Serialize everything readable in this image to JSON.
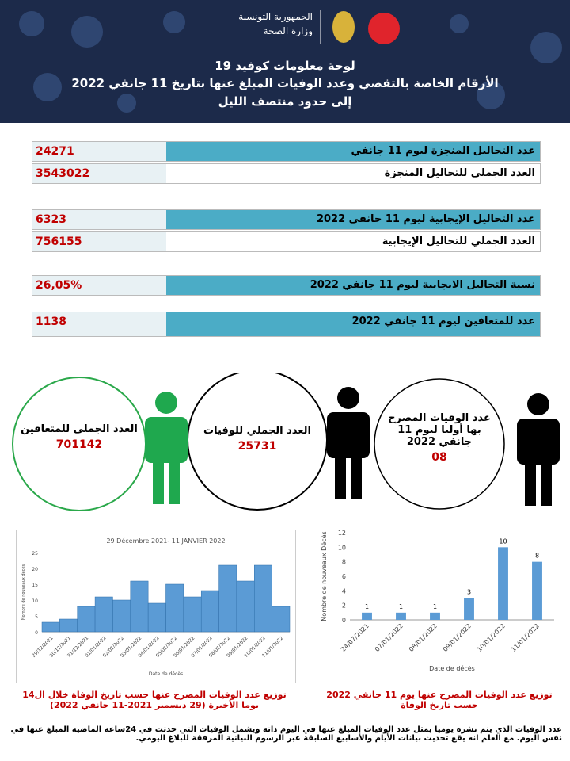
{
  "header": {
    "republic": "الجمهورية التونسية",
    "ministry": "وزارة الصحة",
    "title": "لوحة معلومات كوفيد 19",
    "subtitle": "الأرقام الخاصة بالتقصي وعدد الوفيات المبلغ عنها بتاريخ  11 جانفي 2022",
    "note": "إلى حدود منتصف الليل"
  },
  "table": {
    "rows": [
      [
        "عدد التحاليل المنجزة ليوم 11 جانفي",
        "24271"
      ],
      [
        "العدد الجملي للتحاليل المنجزة",
        "3543022"
      ],
      [
        "عدد التحاليل الإيجابية ليوم  11 جانفي 2022",
        "6323"
      ],
      [
        "العدد الجملي للتحاليل الإيجابية",
        "756155"
      ],
      [
        "نسبة التحاليل الايجابية ليوم 11 جانفي 2022",
        "26,05%"
      ],
      [
        "عدد للمتعافين ليوم 11 جانفي 2022",
        "1138"
      ]
    ]
  },
  "circles": [
    {
      "label": "العدد الجملي للمتعافين",
      "value": "701142"
    },
    {
      "label": "العدد الجملي للوفيات",
      "value": "25731"
    },
    {
      "label": "عدد الوفيات المصرح بها أوليا ليوم 11 جانفي 2022",
      "value": "08"
    }
  ],
  "chart_data": [
    {
      "type": "bar",
      "title": "29 Décembre 2021- 11 JANVIER 2022",
      "x_label": "Date de décès",
      "y_label": "Nombre de nouveaux décès",
      "color": "#5b9bd5",
      "categories": [
        "29/12/2021",
        "30/12/2021",
        "31/12/2021",
        "01/01/2022",
        "02/01/2022",
        "03/01/2022",
        "04/01/2022",
        "05/01/2022",
        "06/01/2022",
        "07/01/2022",
        "08/01/2022",
        "09/01/2022",
        "10/01/2022",
        "11/01/2022"
      ],
      "values": [
        3,
        4,
        8,
        11,
        10,
        16,
        9,
        15,
        11,
        13,
        21,
        16,
        21,
        8
      ],
      "ylim": [
        0,
        25
      ],
      "yticks": [
        0,
        5,
        10,
        15,
        20,
        25
      ],
      "grid": false,
      "bar_width": 1.0,
      "value_labels_shown": false
    },
    {
      "type": "bar",
      "x_label": "Date de décès",
      "y_label": "Nombre de nouveaux Décès",
      "color": "#5b9bd5",
      "categories": [
        "24/07/2021",
        "07/01/2022",
        "08/01/2022",
        "09/01/2022",
        "10/01/2022",
        "11/01/2022"
      ],
      "values": [
        1,
        1,
        1,
        3,
        10,
        8
      ],
      "ylim": [
        0,
        12
      ],
      "yticks": [
        0,
        2,
        4,
        6,
        8,
        10,
        12
      ],
      "grid": false,
      "bar_width": 0.3,
      "value_labels_shown": true
    }
  ],
  "captions": [
    "توزيع عدد الوفيات المصرح عنها حسب تاريخ الوفاة خلال ال14 يوما الأخيرة (29 ديسمبر 2021-11 جانفي 2022)",
    "توزيع عدد الوفيات المصرح عنها يوم 11 جانفي 2022 حسب تاريخ الوفاة"
  ],
  "footer": "عدد الوفيات الذي يتم نشره يوميا يمثل عدد الوفيات المبلغ عنها في اليوم ذاته ويشمل الوفيات التي حدثت في 24ساعة الماضية المبلغ عنها في نفس اليوم. مع العلم انه يقع تحديث بيانات الأيام والأسابيع السابقة عبر الرسوم البيانية المرفقة للبلاغ اليومي."
}
